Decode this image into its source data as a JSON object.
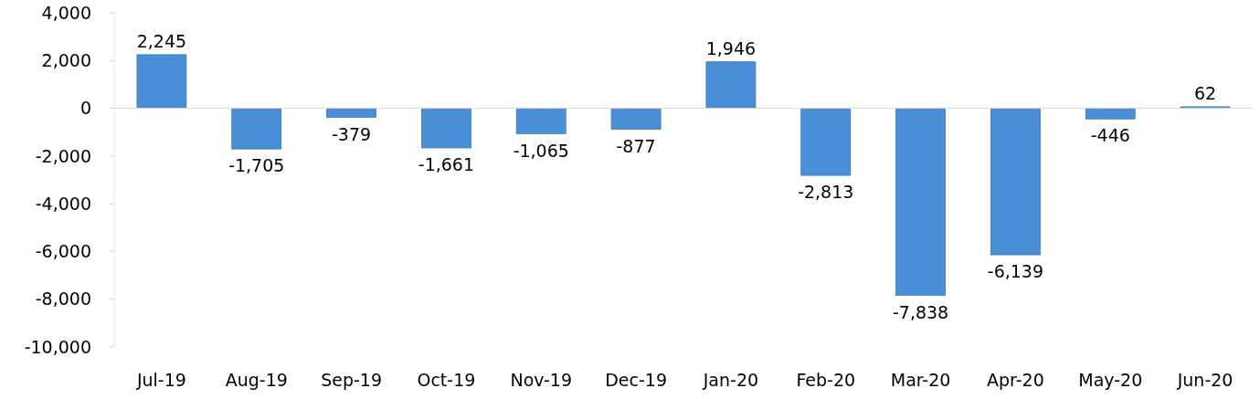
{
  "chart_data": {
    "type": "bar",
    "categories": [
      "Jul-19",
      "Aug-19",
      "Sep-19",
      "Oct-19",
      "Nov-19",
      "Dec-19",
      "Jan-20",
      "Feb-20",
      "Mar-20",
      "Apr-20",
      "May-20",
      "Jun-20"
    ],
    "values": [
      2245,
      -1705,
      -379,
      -1661,
      -1065,
      -877,
      1946,
      -2813,
      -7838,
      -6139,
      -446,
      62
    ],
    "color": "#4a8fd6",
    "ylim": [
      -10000,
      4000
    ],
    "yticks": [
      {
        "value": -10000,
        "label": "-10,000"
      },
      {
        "value": -8000,
        "label": "-8,000"
      },
      {
        "value": -6000,
        "label": "-6,000"
      },
      {
        "value": -4000,
        "label": "-4,000"
      },
      {
        "value": -2000,
        "label": "-2,000"
      },
      {
        "value": 0,
        "label": "0"
      },
      {
        "value": 2000,
        "label": "2,000"
      },
      {
        "value": 4000,
        "label": "4,000"
      }
    ],
    "value_labels": [
      "2,245",
      "-1,705",
      "-379",
      "-1,661",
      "-1,065",
      "-877",
      "1,946",
      "-2,813",
      "-7,838",
      "-6,139",
      "-446",
      "62"
    ]
  }
}
